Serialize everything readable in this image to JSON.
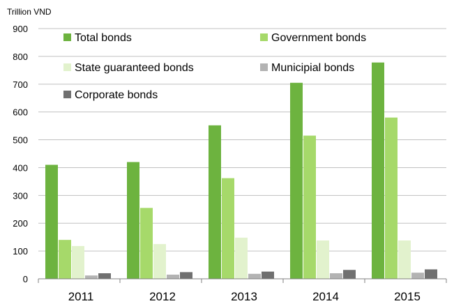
{
  "chart_data": {
    "type": "bar",
    "unit_label": "Trillion VND",
    "categories": [
      "2011",
      "2012",
      "2013",
      "2014",
      "2015"
    ],
    "ylim": [
      0,
      900
    ],
    "yticks": [
      "0",
      "100",
      "200",
      "300",
      "400",
      "500",
      "600",
      "700",
      "800",
      "900"
    ],
    "grid": true,
    "legend_position": "top-inside",
    "series": [
      {
        "name": "Total bonds",
        "color": "#6db33f",
        "values": [
          410,
          420,
          552,
          705,
          778
        ]
      },
      {
        "name": "Government bonds",
        "color": "#a6d96a",
        "values": [
          140,
          255,
          362,
          515,
          580
        ]
      },
      {
        "name": "State guaranteed bonds",
        "color": "#e2f2cd",
        "values": [
          118,
          125,
          148,
          138,
          138
        ]
      },
      {
        "name": "Municipial bonds",
        "color": "#b3b3b3",
        "values": [
          12,
          15,
          18,
          20,
          22
        ]
      },
      {
        "name": "Corporate bonds",
        "color": "#707070",
        "values": [
          20,
          24,
          26,
          32,
          34
        ]
      }
    ]
  }
}
